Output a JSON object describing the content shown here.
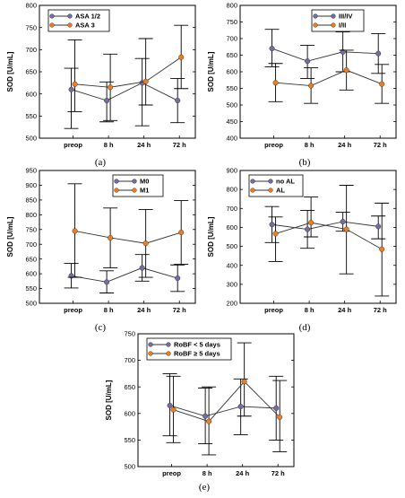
{
  "colors": {
    "group1": "#6f6fa0",
    "group2": "#ee7d1e",
    "error_bar": "#000000"
  },
  "chart_data": [
    {
      "type": "line",
      "label": "(a)",
      "ylabel": "SOD [U/mL]",
      "categories": [
        "preop",
        "8 h",
        "24 h",
        "72 h"
      ],
      "ylim": [
        500,
        800
      ],
      "yticks": [
        500,
        550,
        600,
        650,
        700,
        750,
        800
      ],
      "legend_position": "top-left",
      "series": [
        {
          "name": "ASA 1/2",
          "color": "#6f6fa0",
          "values": [
            610,
            585,
            625,
            585
          ],
          "lower": [
            522,
            537,
            528,
            535
          ],
          "upper": [
            658,
            627,
            680,
            635
          ]
        },
        {
          "name": "ASA 3",
          "color": "#ee7d1e",
          "values": [
            622,
            615,
            628,
            683
          ],
          "lower": [
            560,
            540,
            575,
            612
          ],
          "upper": [
            722,
            690,
            725,
            755
          ]
        }
      ]
    },
    {
      "type": "line",
      "label": "(b)",
      "ylabel": "SOD [U/mL]",
      "categories": [
        "preop",
        "8 h",
        "24 h",
        "72 h"
      ],
      "ylim": [
        400,
        800
      ],
      "yticks": [
        400,
        450,
        500,
        550,
        600,
        650,
        700,
        750,
        800
      ],
      "legend_position": "top-right",
      "series": [
        {
          "name": "III/IV",
          "color": "#6f6fa0",
          "values": [
            670,
            632,
            660,
            655
          ],
          "lower": [
            615,
            580,
            600,
            595
          ],
          "upper": [
            728,
            680,
            720,
            715
          ]
        },
        {
          "name": "I/II",
          "color": "#ee7d1e",
          "values": [
            567,
            558,
            605,
            563
          ],
          "lower": [
            510,
            505,
            545,
            505
          ],
          "upper": [
            625,
            612,
            665,
            622
          ]
        }
      ]
    },
    {
      "type": "line",
      "label": "(c)",
      "ylabel": "SOD [U/mL]",
      "categories": [
        "preop",
        "8 h",
        "24 h",
        "72 h"
      ],
      "ylim": [
        500,
        950
      ],
      "yticks": [
        500,
        550,
        600,
        650,
        700,
        750,
        800,
        850,
        900,
        950
      ],
      "legend_position": "top-right",
      "series": [
        {
          "name": "M0",
          "color": "#6f6fa0",
          "values": [
            593,
            572,
            620,
            585
          ],
          "lower": [
            552,
            535,
            575,
            540
          ],
          "upper": [
            635,
            610,
            665,
            630
          ]
        },
        {
          "name": "M1",
          "color": "#ee7d1e",
          "values": [
            745,
            722,
            703,
            740
          ],
          "lower": [
            588,
            620,
            588,
            632
          ],
          "upper": [
            905,
            823,
            818,
            848
          ]
        }
      ]
    },
    {
      "type": "line",
      "label": "(d)",
      "ylabel": "SOD [U/mL]",
      "categories": [
        "preop",
        "8 h",
        "24 h",
        "72 h"
      ],
      "ylim": [
        200,
        900
      ],
      "yticks": [
        200,
        300,
        400,
        500,
        600,
        700,
        800,
        900
      ],
      "legend_position": "top-left",
      "series": [
        {
          "name": "no AL",
          "color": "#6f6fa0",
          "values": [
            615,
            590,
            630,
            605
          ],
          "lower": [
            520,
            490,
            580,
            540
          ],
          "upper": [
            710,
            690,
            680,
            660
          ]
        },
        {
          "name": "AL",
          "color": "#ee7d1e",
          "values": [
            567,
            625,
            590,
            485
          ],
          "lower": [
            420,
            550,
            355,
            238
          ],
          "upper": [
            655,
            760,
            822,
            728
          ]
        }
      ]
    },
    {
      "type": "line",
      "label": "(e)",
      "ylabel": "SOD [U/mL]",
      "categories": [
        "preop",
        "8 h",
        "24 h",
        "72 h"
      ],
      "ylim": [
        500,
        750
      ],
      "yticks": [
        500,
        550,
        600,
        650,
        700,
        750
      ],
      "legend_position": "top-left",
      "series": [
        {
          "name": "RoBF < 5 days",
          "color": "#6f6fa0",
          "values": [
            615,
            595,
            613,
            610
          ],
          "lower": [
            558,
            543,
            560,
            550
          ],
          "upper": [
            675,
            648,
            665,
            670
          ]
        },
        {
          "name": "RoBF ≥ 5 days",
          "color": "#ee7d1e",
          "values": [
            607,
            585,
            660,
            593
          ],
          "lower": [
            545,
            522,
            595,
            528
          ],
          "upper": [
            670,
            650,
            733,
            662
          ]
        }
      ]
    }
  ]
}
